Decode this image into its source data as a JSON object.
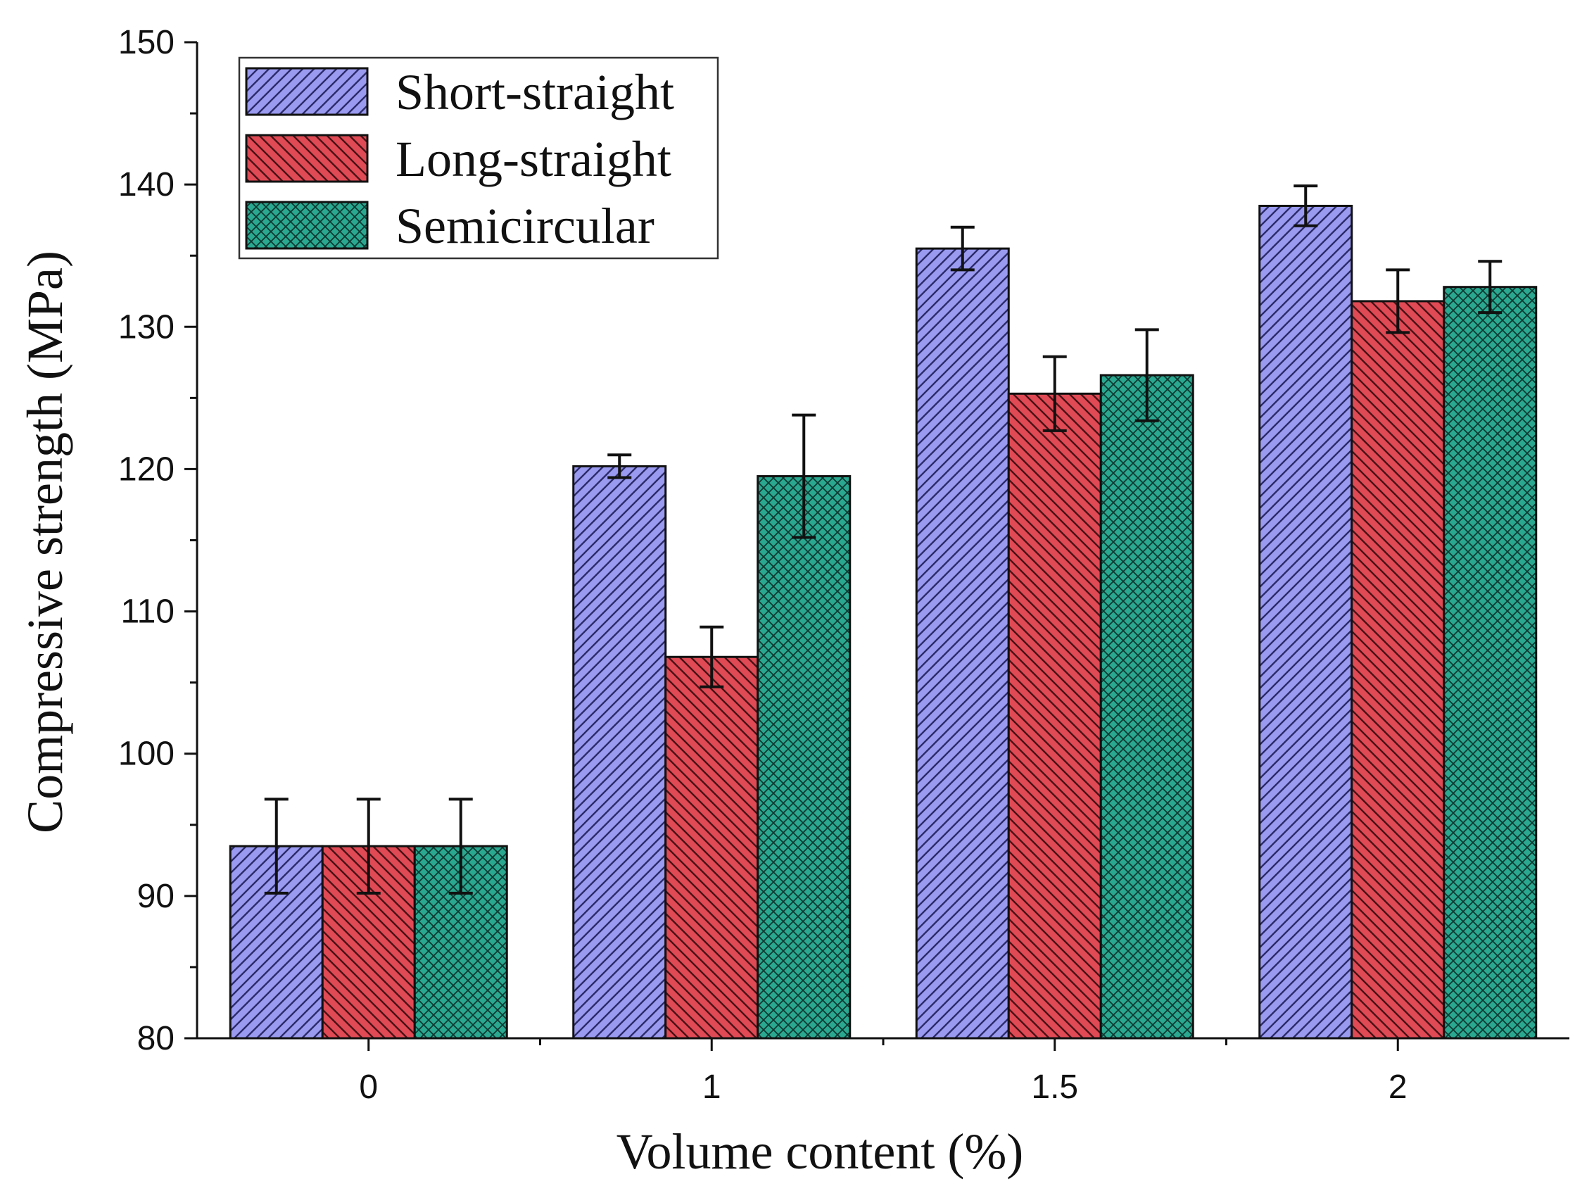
{
  "chart_data": {
    "type": "bar",
    "title": "",
    "xlabel": "Volume content (%)",
    "ylabel": "Compressive strength (MPa)",
    "ylim": [
      80,
      150
    ],
    "yticks": [
      80,
      90,
      100,
      110,
      120,
      130,
      140,
      150
    ],
    "categories": [
      "0",
      "1",
      "1.5",
      "2"
    ],
    "legend_position": "top-left",
    "grid": false,
    "series": [
      {
        "name": "Short-straight",
        "color": "#9a9af0",
        "pattern": "forward-diagonal",
        "values": [
          93.5,
          120.2,
          135.5,
          138.5
        ],
        "errors": [
          3.3,
          0.8,
          1.5,
          1.4
        ]
      },
      {
        "name": "Long-straight",
        "color": "#e04a55",
        "pattern": "backward-diagonal",
        "values": [
          93.5,
          106.8,
          125.3,
          131.8
        ],
        "errors": [
          3.3,
          2.1,
          2.6,
          2.2
        ]
      },
      {
        "name": "Semicircular",
        "color": "#2aa890",
        "pattern": "crosshatch",
        "values": [
          93.5,
          119.5,
          126.6,
          132.8
        ],
        "errors": [
          3.3,
          4.3,
          3.2,
          1.8
        ]
      }
    ]
  }
}
